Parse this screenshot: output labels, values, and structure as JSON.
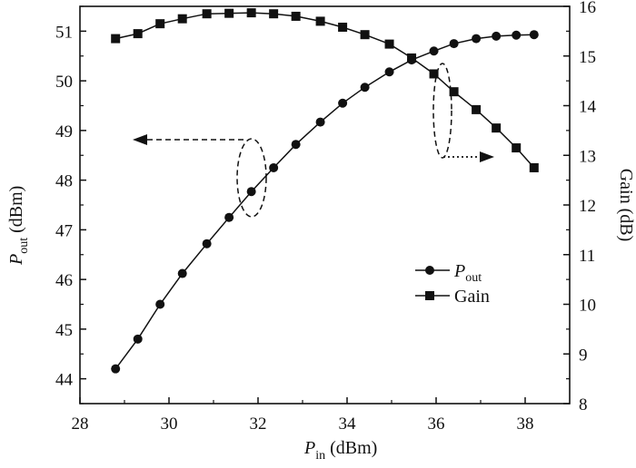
{
  "chart_data": {
    "type": "line",
    "x": [
      28.8,
      29.3,
      29.8,
      30.3,
      30.85,
      31.35,
      31.85,
      32.35,
      32.85,
      33.4,
      33.9,
      34.4,
      34.95,
      35.45,
      35.95,
      36.4,
      36.9,
      37.35,
      37.8,
      38.2
    ],
    "series": [
      {
        "name": "Pout",
        "axis": "left",
        "marker": "circle",
        "values": [
          44.2,
          44.8,
          45.5,
          46.12,
          46.72,
          47.25,
          47.77,
          48.25,
          48.72,
          49.17,
          49.55,
          49.87,
          50.18,
          50.42,
          50.6,
          50.75,
          50.85,
          50.9,
          50.92,
          50.93
        ]
      },
      {
        "name": "Gain",
        "axis": "right",
        "marker": "square",
        "values": [
          15.35,
          15.45,
          15.65,
          15.75,
          15.85,
          15.86,
          15.87,
          15.85,
          15.8,
          15.7,
          15.58,
          15.43,
          15.24,
          14.96,
          14.64,
          14.28,
          13.92,
          13.55,
          13.15,
          12.75
        ]
      }
    ],
    "xlabel": {
      "main": "P",
      "sub": "in",
      "unit": " (dBm)"
    },
    "ylabel_left": {
      "main": "P",
      "sub": "out",
      "unit": " (dBm)"
    },
    "ylabel_right": "Gain (dB)",
    "xlim": [
      28,
      39
    ],
    "ylim_left": [
      43.5,
      51.5
    ],
    "ylim_right": [
      8,
      16
    ],
    "xticks": [
      28,
      30,
      32,
      34,
      36,
      38
    ],
    "yticks_left": [
      44,
      45,
      46,
      47,
      48,
      49,
      50,
      51
    ],
    "yticks_right": [
      8,
      9,
      10,
      11,
      12,
      13,
      14,
      15,
      16
    ],
    "legend": [
      {
        "label": "P",
        "sub": "out",
        "marker": "circle"
      },
      {
        "label": "Gain",
        "sub": "",
        "marker": "square"
      }
    ],
    "legend_position": "center-right",
    "grid": false,
    "annotations": [
      {
        "type": "ellipse-with-dashed-arrow",
        "around_series": "Pout",
        "points_to": "left"
      },
      {
        "type": "ellipse-with-dotted-arrow",
        "around_series": "Gain",
        "points_to": "right"
      }
    ]
  }
}
